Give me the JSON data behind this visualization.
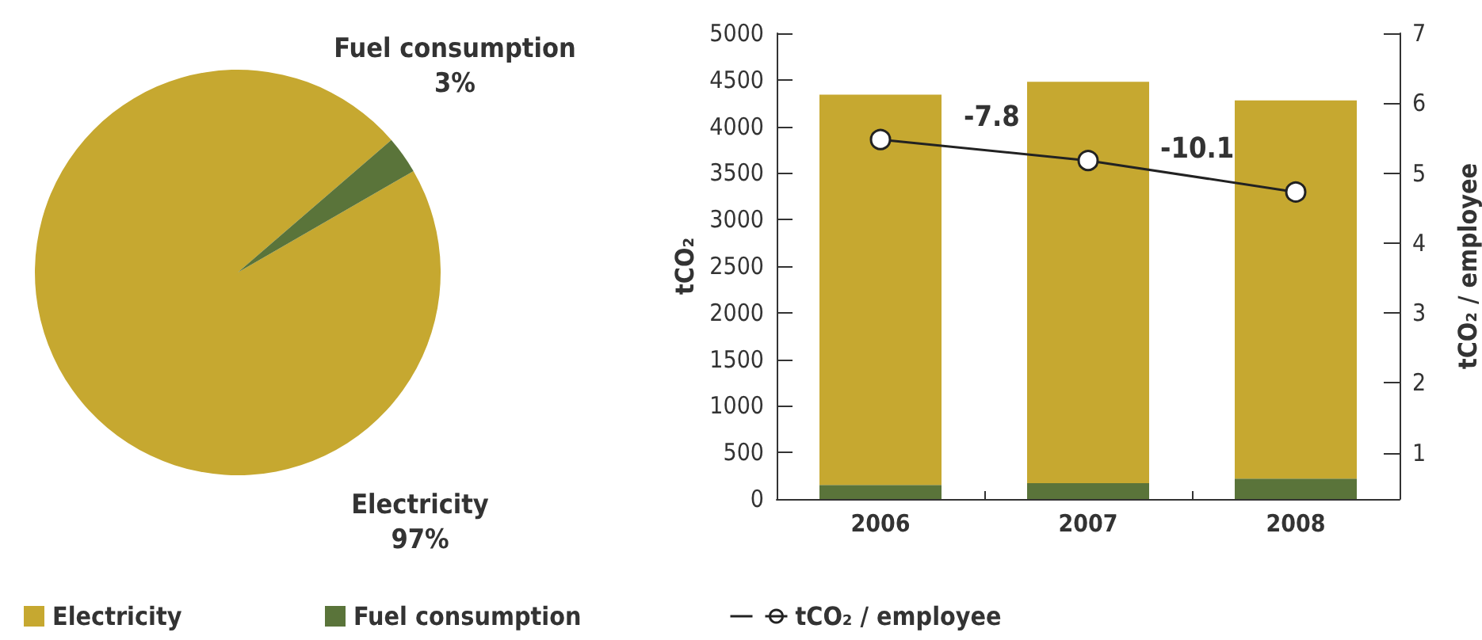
{
  "chart_data": [
    {
      "type": "pie",
      "categories": [
        "Electricity",
        "Fuel consumption"
      ],
      "values": [
        97,
        3
      ],
      "colors": [
        "#c6a830",
        "#5a743a"
      ],
      "value_labels": [
        "97%",
        "3%"
      ],
      "legend": false
    },
    {
      "type": "bar",
      "categories": [
        "2006",
        "2007",
        "2008"
      ],
      "stacked": true,
      "ylabel": "tCO₂",
      "y2label": "tCO₂ / employee",
      "ylim": [
        0,
        5000
      ],
      "yticks": [
        0,
        500,
        1000,
        1500,
        2000,
        2500,
        3000,
        3500,
        4000,
        4500,
        5000
      ],
      "y2lim": [
        0.34,
        7
      ],
      "y2ticks": [
        1,
        2,
        3,
        4,
        5,
        6,
        7
      ],
      "series": [
        {
          "name": "Fuel consumption",
          "color": "#5a743a",
          "values": [
            150,
            170,
            220
          ]
        },
        {
          "name": "Electricity",
          "color": "#c6a830",
          "values": [
            4190,
            4310,
            4060
          ]
        },
        {
          "name": "tCO₂ / employee",
          "type": "line",
          "axis": "y2",
          "color": "#222222",
          "marker": "circle",
          "values": [
            5.48,
            5.18,
            4.73
          ]
        }
      ],
      "annotations": [
        "-7.8",
        "-10.1"
      ],
      "legend": "bottom left",
      "grid": false
    }
  ]
}
